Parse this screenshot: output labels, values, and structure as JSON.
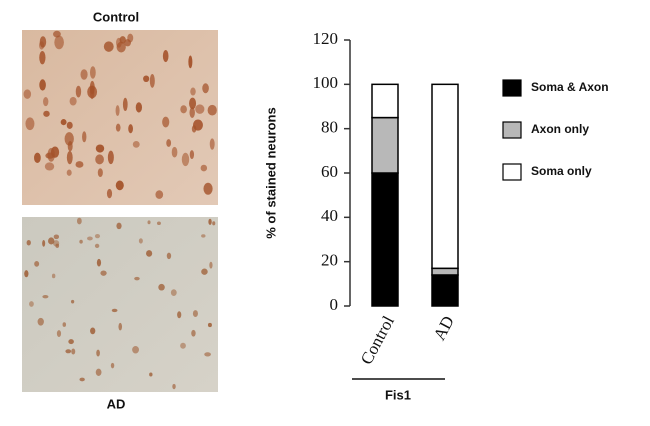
{
  "images": [
    {
      "label": "Control"
    },
    {
      "label": "AD"
    }
  ],
  "chart_data": {
    "type": "bar",
    "stacked": true,
    "ylabel": "% of stained neurons",
    "xlabel": "Fis1",
    "categories": [
      "Control",
      "AD"
    ],
    "series": [
      {
        "name": "Soma & Axon",
        "color": "#000000",
        "values": [
          60,
          14
        ]
      },
      {
        "name": "Axon only",
        "color": "#b8b8b8",
        "values": [
          25,
          3
        ]
      },
      {
        "name": "Soma only",
        "color": "#ffffff",
        "values": [
          15,
          83
        ]
      }
    ],
    "ylim": [
      0,
      120
    ],
    "yticks": [
      0,
      20,
      40,
      60,
      80,
      100,
      120
    ],
    "legend": "right"
  }
}
